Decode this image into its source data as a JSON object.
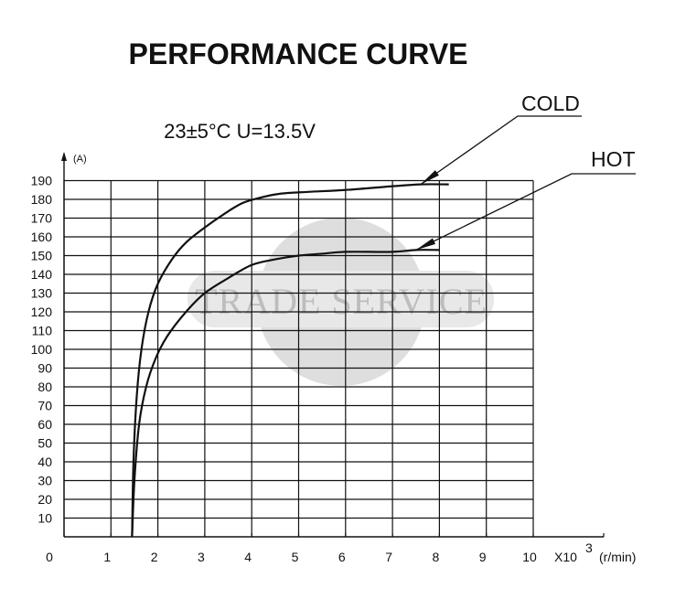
{
  "chart_data": {
    "type": "line",
    "title": "PERFORMANCE CURVE",
    "subtitle": "23±5°C   U=13.5V",
    "ylabel": "(A)",
    "xlabel": "(r/min)",
    "x_multiplier": {
      "base": "X10",
      "exp": "3"
    },
    "xlim": [
      0,
      10
    ],
    "ylim": [
      0,
      190
    ],
    "x_ticks": [
      "0",
      "1",
      "2",
      "3",
      "4",
      "5",
      "6",
      "7",
      "8",
      "9",
      "10"
    ],
    "y_ticks": [
      "10",
      "20",
      "30",
      "40",
      "50",
      "60",
      "70",
      "80",
      "90",
      "100",
      "110",
      "120",
      "130",
      "140",
      "150",
      "160",
      "170",
      "180",
      "190"
    ],
    "grid": true,
    "series": [
      {
        "name": "COLD",
        "x": [
          1.45,
          1.48,
          1.55,
          1.65,
          1.8,
          2.0,
          2.3,
          2.6,
          3.0,
          3.4,
          3.8,
          4.2,
          4.6,
          5.2,
          6.0,
          7.0,
          7.6,
          8.2
        ],
        "y": [
          0,
          40,
          75,
          100,
          120,
          135,
          148,
          157,
          165,
          172,
          178,
          181,
          183,
          184,
          185,
          187,
          188,
          188
        ]
      },
      {
        "name": "HOT",
        "x": [
          1.45,
          1.5,
          1.6,
          1.75,
          1.95,
          2.2,
          2.6,
          3.0,
          3.5,
          4.0,
          4.5,
          5.0,
          5.5,
          6.0,
          7.0,
          7.5,
          8.0
        ],
        "y": [
          0,
          30,
          60,
          80,
          95,
          107,
          120,
          130,
          138,
          145,
          148,
          150,
          151,
          152,
          152,
          153,
          153
        ]
      }
    ],
    "watermark": "TRADE SERVICE"
  }
}
